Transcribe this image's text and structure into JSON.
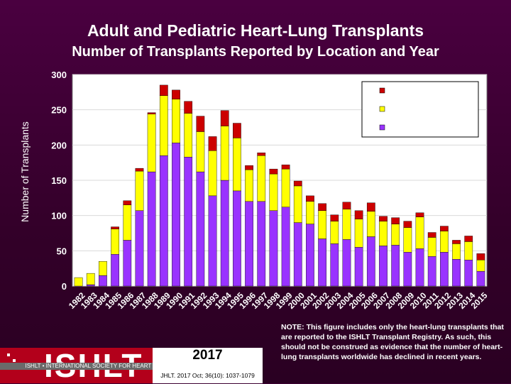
{
  "title": "Adult and Pediatric Heart-Lung Transplants",
  "subtitle": "Number of Transplants Reported by Location and Year",
  "note": "NOTE: This figure includes only the heart-lung transplants that are reported to the ISHLT Transplant Registry. As such, this should not be construed as evidence that the number of heart-lung transplants worldwide has declined in recent years.",
  "logo": {
    "name": "ISHLT",
    "tagline": "ISHLT • INTERNATIONAL SOCIETY FOR HEART AND LUNG TRANSPLANTATION",
    "year": "2017",
    "citation": "JHLT. 2017 Oct; 36(10): 1037-1079"
  },
  "colors": {
    "series_bottom": "#9933ff",
    "series_middle": "#ffff00",
    "series_top": "#cc0000",
    "plot_bg": "#ffffff",
    "axis_text": "#ffffff"
  },
  "chart_data": {
    "type": "bar",
    "stacked": true,
    "ylabel": "Number of Transplants",
    "xlabel": "",
    "ylim": [
      0,
      300
    ],
    "yticks": [
      0,
      50,
      100,
      150,
      200,
      250,
      300
    ],
    "categories": [
      "1982",
      "1983",
      "1984",
      "1985",
      "1986",
      "1987",
      "1988",
      "1989",
      "1990",
      "1991",
      "1992",
      "1993",
      "1994",
      "1995",
      "1996",
      "1997",
      "1998",
      "1999",
      "2000",
      "2001",
      "2002",
      "2003",
      "2004",
      "2005",
      "2006",
      "2007",
      "2008",
      "2009",
      "2010",
      "2011",
      "2012",
      "2013",
      "2014",
      "2015"
    ],
    "legend_placement": "top-right",
    "series": [
      {
        "name": "",
        "color": "#9933ff",
        "values": [
          0,
          2,
          15,
          45,
          65,
          107,
          162,
          185,
          203,
          183,
          162,
          128,
          150,
          135,
          120,
          120,
          107,
          112,
          90,
          88,
          67,
          60,
          66,
          55,
          70,
          57,
          58,
          48,
          53,
          42,
          48,
          38,
          37,
          21
        ]
      },
      {
        "name": "",
        "color": "#ffff00",
        "values": [
          12,
          16,
          20,
          36,
          50,
          56,
          82,
          85,
          62,
          62,
          57,
          64,
          77,
          75,
          45,
          65,
          52,
          54,
          52,
          32,
          40,
          32,
          43,
          40,
          36,
          35,
          30,
          35,
          45,
          27,
          30,
          22,
          26,
          16
        ]
      },
      {
        "name": "",
        "color": "#cc0000",
        "values": [
          0,
          0,
          0,
          3,
          6,
          4,
          2,
          15,
          13,
          17,
          22,
          20,
          22,
          21,
          6,
          4,
          7,
          6,
          7,
          8,
          10,
          9,
          10,
          12,
          12,
          7,
          9,
          9,
          6,
          7,
          7,
          5,
          8,
          9
        ]
      }
    ]
  }
}
